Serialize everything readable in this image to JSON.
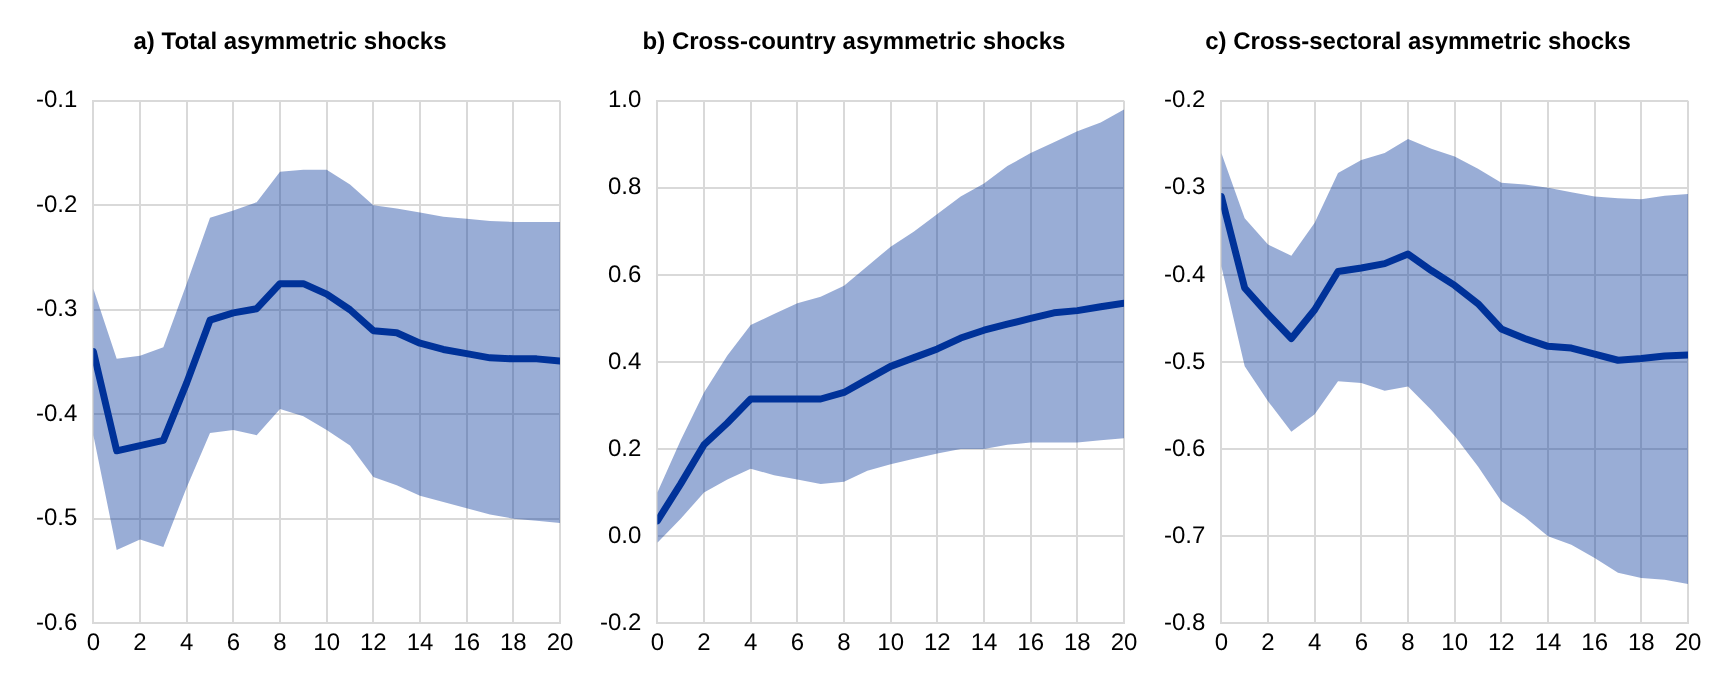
{
  "chart_data": [
    {
      "type": "line",
      "title": "a) Total asymmetric shocks",
      "x": [
        0,
        1,
        2,
        3,
        4,
        5,
        6,
        7,
        8,
        9,
        10,
        11,
        12,
        13,
        14,
        15,
        16,
        17,
        18,
        19,
        20
      ],
      "xlim": [
        0,
        20
      ],
      "xticks": [
        0,
        2,
        4,
        6,
        8,
        10,
        12,
        14,
        16,
        18,
        20
      ],
      "ylim": [
        -0.6,
        -0.1
      ],
      "yticks": [
        -0.6,
        -0.5,
        -0.4,
        -0.3,
        -0.2,
        -0.1
      ],
      "grid": true,
      "legend": false,
      "marker": "none",
      "line_style": "solid",
      "series": [
        {
          "color": "#003299",
          "values": [
            -0.34,
            -0.435,
            -0.43,
            -0.425,
            -0.37,
            -0.31,
            -0.303,
            -0.299,
            -0.275,
            -0.275,
            -0.285,
            -0.3,
            -0.32,
            -0.322,
            -0.332,
            -0.338,
            -0.342,
            -0.346,
            -0.347,
            -0.347,
            -0.349
          ],
          "upper": [
            -0.28,
            -0.347,
            -0.344,
            -0.336,
            -0.275,
            -0.212,
            -0.205,
            -0.197,
            -0.168,
            -0.166,
            -0.166,
            -0.18,
            -0.2,
            -0.203,
            -0.207,
            -0.211,
            -0.213,
            -0.215,
            -0.216,
            -0.216,
            -0.216
          ],
          "lower": [
            -0.42,
            -0.53,
            -0.52,
            -0.527,
            -0.47,
            -0.418,
            -0.415,
            -0.42,
            -0.395,
            -0.402,
            -0.415,
            -0.43,
            -0.46,
            -0.468,
            -0.478,
            -0.484,
            -0.49,
            -0.496,
            -0.5,
            -0.502,
            -0.504
          ]
        }
      ]
    },
    {
      "type": "line",
      "title": "b) Cross-country asymmetric shocks",
      "x": [
        0,
        1,
        2,
        3,
        4,
        5,
        6,
        7,
        8,
        9,
        10,
        11,
        12,
        13,
        14,
        15,
        16,
        17,
        18,
        19,
        20
      ],
      "xlim": [
        0,
        20
      ],
      "xticks": [
        0,
        2,
        4,
        6,
        8,
        10,
        12,
        14,
        16,
        18,
        20
      ],
      "ylim": [
        -0.2,
        1.0
      ],
      "yticks": [
        {
          "value": -0.2,
          "label": "-0.2"
        },
        {
          "value": 0,
          "label": "0.0"
        },
        {
          "value": 0.2,
          "label": "0.2"
        },
        {
          "value": 0.4,
          "label": "0.4"
        },
        {
          "value": 0.6,
          "label": "0.6"
        },
        {
          "value": 0.8,
          "label": "0.8"
        },
        {
          "value": 1.0,
          "label": "1.0"
        }
      ],
      "grid": true,
      "legend": false,
      "marker": "none",
      "line_style": "solid",
      "series": [
        {
          "color": "#003299",
          "values": [
            0.035,
            0.12,
            0.21,
            0.26,
            0.315,
            0.315,
            0.315,
            0.315,
            0.33,
            0.36,
            0.39,
            0.41,
            0.43,
            0.455,
            0.473,
            0.487,
            0.5,
            0.513,
            0.518,
            0.527,
            0.535
          ],
          "upper": [
            0.1,
            0.22,
            0.33,
            0.415,
            0.485,
            0.51,
            0.535,
            0.55,
            0.575,
            0.62,
            0.665,
            0.7,
            0.74,
            0.78,
            0.81,
            0.85,
            0.88,
            0.905,
            0.93,
            0.95,
            0.98
          ],
          "lower": [
            -0.015,
            0.04,
            0.1,
            0.13,
            0.155,
            0.14,
            0.13,
            0.12,
            0.125,
            0.15,
            0.165,
            0.178,
            0.19,
            0.2,
            0.2,
            0.21,
            0.215,
            0.215,
            0.215,
            0.22,
            0.225
          ]
        }
      ]
    },
    {
      "type": "line",
      "title": "c) Cross-sectoral asymmetric shocks",
      "x": [
        0,
        1,
        2,
        3,
        4,
        5,
        6,
        7,
        8,
        9,
        10,
        11,
        12,
        13,
        14,
        15,
        16,
        17,
        18,
        19,
        20
      ],
      "xlim": [
        0,
        20
      ],
      "xticks": [
        0,
        2,
        4,
        6,
        8,
        10,
        12,
        14,
        16,
        18,
        20
      ],
      "ylim": [
        -0.8,
        -0.2
      ],
      "yticks": [
        -0.8,
        -0.7,
        -0.6,
        -0.5,
        -0.4,
        -0.3,
        -0.2
      ],
      "grid": true,
      "legend": false,
      "marker": "none",
      "line_style": "solid",
      "series": [
        {
          "color": "#003299",
          "values": [
            -0.31,
            -0.415,
            -0.445,
            -0.473,
            -0.44,
            -0.396,
            -0.392,
            -0.387,
            -0.376,
            -0.395,
            -0.412,
            -0.433,
            -0.462,
            -0.473,
            -0.482,
            -0.484,
            -0.491,
            -0.498,
            -0.496,
            -0.493,
            -0.492
          ],
          "upper": [
            -0.26,
            -0.335,
            -0.365,
            -0.378,
            -0.34,
            -0.283,
            -0.268,
            -0.26,
            -0.244,
            -0.255,
            -0.264,
            -0.278,
            -0.294,
            -0.296,
            -0.3,
            -0.305,
            -0.31,
            -0.312,
            -0.313,
            -0.309,
            -0.307
          ],
          "lower": [
            -0.39,
            -0.505,
            -0.545,
            -0.58,
            -0.56,
            -0.522,
            -0.524,
            -0.533,
            -0.528,
            -0.555,
            -0.585,
            -0.62,
            -0.66,
            -0.678,
            -0.7,
            -0.71,
            -0.725,
            -0.742,
            -0.748,
            -0.75,
            -0.755
          ]
        }
      ]
    }
  ]
}
